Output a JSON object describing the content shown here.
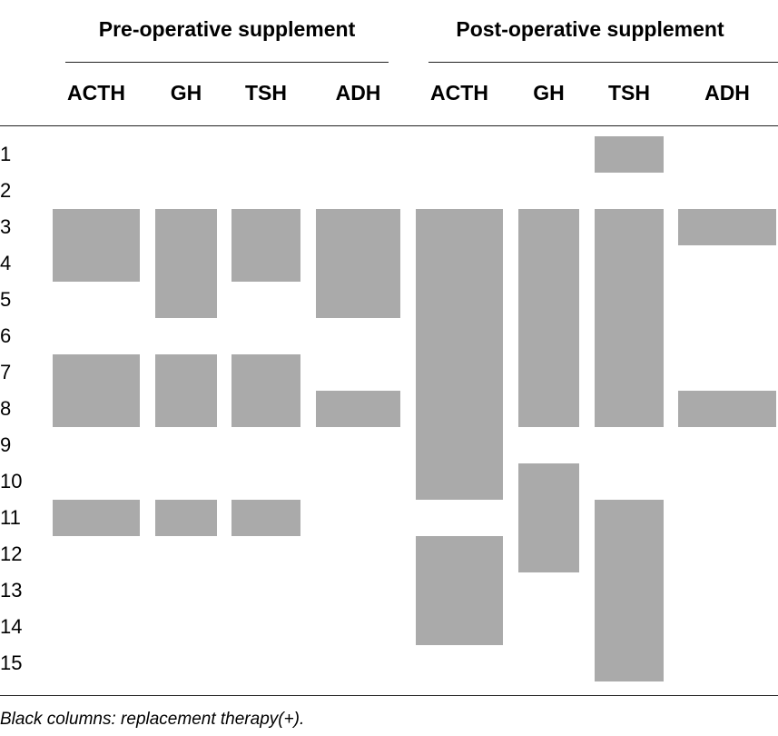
{
  "table": {
    "groups": [
      "Pre-operative supplement",
      "Post-operative supplement"
    ],
    "columns": [
      "ACTH",
      "GH",
      "TSH",
      "ADH",
      "ACTH",
      "GH",
      "TSH",
      "ADH"
    ],
    "rows": [
      "1",
      "2",
      "3",
      "4",
      "5",
      "6",
      "7",
      "8",
      "9",
      "10",
      "11",
      "12",
      "13",
      "14",
      "15"
    ],
    "footnote": "Black columns: replacement therapy(+)."
  },
  "chart_data": {
    "type": "table",
    "bar_color": "#aaaaaa",
    "groups": [
      "Pre-operative supplement",
      "Post-operative supplement"
    ],
    "hormones": [
      "ACTH",
      "GH",
      "TSH",
      "ADH"
    ],
    "patients": [
      1,
      2,
      3,
      4,
      5,
      6,
      7,
      8,
      9,
      10,
      11,
      12,
      13,
      14,
      15
    ],
    "replacement_therapy_patients": [
      {
        "group": "Pre-operative supplement",
        "hormone": "ACTH",
        "patients": [
          3,
          4,
          7,
          8,
          11
        ]
      },
      {
        "group": "Pre-operative supplement",
        "hormone": "GH",
        "patients": [
          3,
          4,
          5,
          7,
          8,
          11
        ]
      },
      {
        "group": "Pre-operative supplement",
        "hormone": "TSH",
        "patients": [
          3,
          4,
          7,
          8,
          11
        ]
      },
      {
        "group": "Pre-operative supplement",
        "hormone": "ADH",
        "patients": [
          3,
          4,
          5,
          8
        ]
      },
      {
        "group": "Post-operative supplement",
        "hormone": "ACTH",
        "patients": [
          3,
          4,
          5,
          6,
          7,
          8,
          9,
          10,
          12,
          13,
          14
        ]
      },
      {
        "group": "Post-operative supplement",
        "hormone": "GH",
        "patients": [
          3,
          4,
          5,
          6,
          7,
          8,
          10,
          11,
          12
        ]
      },
      {
        "group": "Post-operative supplement",
        "hormone": "TSH",
        "patients": [
          1,
          3,
          4,
          5,
          6,
          7,
          8,
          11,
          12,
          13,
          14,
          15
        ]
      },
      {
        "group": "Post-operative supplement",
        "hormone": "ADH",
        "patients": [
          3,
          8
        ]
      }
    ]
  }
}
